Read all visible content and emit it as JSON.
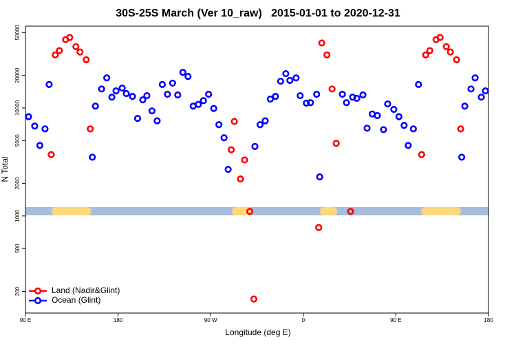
{
  "chart_data": {
    "type": "scatter",
    "title": "30S-25S March (Ver 10_raw)   2015-01-01 to 2020-12-31",
    "x_label": "Longitude (deg E)",
    "y_label": "N Total",
    "xlim": [
      90,
      540
    ],
    "xticks": [
      {
        "value": 90,
        "label": "90 E"
      },
      {
        "value": 180,
        "label": "180"
      },
      {
        "value": 270,
        "label": "90 W"
      },
      {
        "value": 360,
        "label": "0"
      },
      {
        "value": 450,
        "label": "90 E"
      },
      {
        "value": 540,
        "label": "180"
      }
    ],
    "ylim": [
      126,
      57300
    ],
    "y_log": true,
    "yticks": [
      200,
      500,
      1000,
      2000,
      5000,
      10000,
      20000,
      50000
    ],
    "legend": "lower left",
    "series": [
      {
        "name": "Land (Nadir&Glint)",
        "color": "#ff0000",
        "x": [
          115,
          119,
          123,
          129,
          133,
          139,
          143,
          149,
          153,
          290,
          293,
          299,
          303,
          308,
          312,
          375,
          378,
          383,
          388,
          392,
          406,
          475,
          479,
          483,
          489,
          493,
          499,
          503,
          509,
          513
        ],
        "values": [
          3700,
          31000,
          34000,
          43000,
          45000,
          37000,
          33000,
          28000,
          6400,
          4100,
          7500,
          2200,
          3300,
          1100,
          170,
          780,
          40000,
          31000,
          15000,
          4700,
          1100,
          3700,
          31000,
          34000,
          43000,
          45000,
          37000,
          33000,
          28000,
          6400
        ]
      },
      {
        "name": "Ocean (Glint)",
        "color": "#0000ff",
        "x": [
          93,
          99,
          104,
          109,
          113,
          155,
          158,
          164,
          169,
          174,
          178,
          184,
          188,
          194,
          199,
          204,
          208,
          213,
          218,
          223,
          228,
          233,
          238,
          243,
          248,
          253,
          258,
          263,
          268,
          273,
          278,
          283,
          287,
          313,
          318,
          323,
          328,
          333,
          338,
          343,
          347,
          353,
          357,
          363,
          367,
          373,
          376,
          398,
          402,
          408,
          412,
          418,
          422,
          427,
          432,
          438,
          442,
          448,
          453,
          458,
          462,
          467,
          472,
          514,
          517,
          523,
          527,
          533,
          537
        ],
        "values": [
          8300,
          6800,
          4500,
          6400,
          16500,
          3500,
          10400,
          15000,
          19000,
          12600,
          14400,
          15300,
          13600,
          12800,
          8000,
          11900,
          13000,
          9400,
          7600,
          16500,
          13400,
          17000,
          13200,
          21400,
          19600,
          10400,
          10800,
          11700,
          13400,
          9900,
          7000,
          5300,
          2700,
          4400,
          7000,
          7600,
          12100,
          12800,
          17700,
          20800,
          18000,
          19000,
          13000,
          11100,
          11200,
          13400,
          2300,
          13400,
          11200,
          12600,
          12300,
          13200,
          6500,
          8800,
          8500,
          6300,
          10900,
          9700,
          8300,
          6900,
          4500,
          6400,
          16500,
          3500,
          10400,
          15000,
          19000,
          12600,
          14400
        ]
      }
    ]
  }
}
